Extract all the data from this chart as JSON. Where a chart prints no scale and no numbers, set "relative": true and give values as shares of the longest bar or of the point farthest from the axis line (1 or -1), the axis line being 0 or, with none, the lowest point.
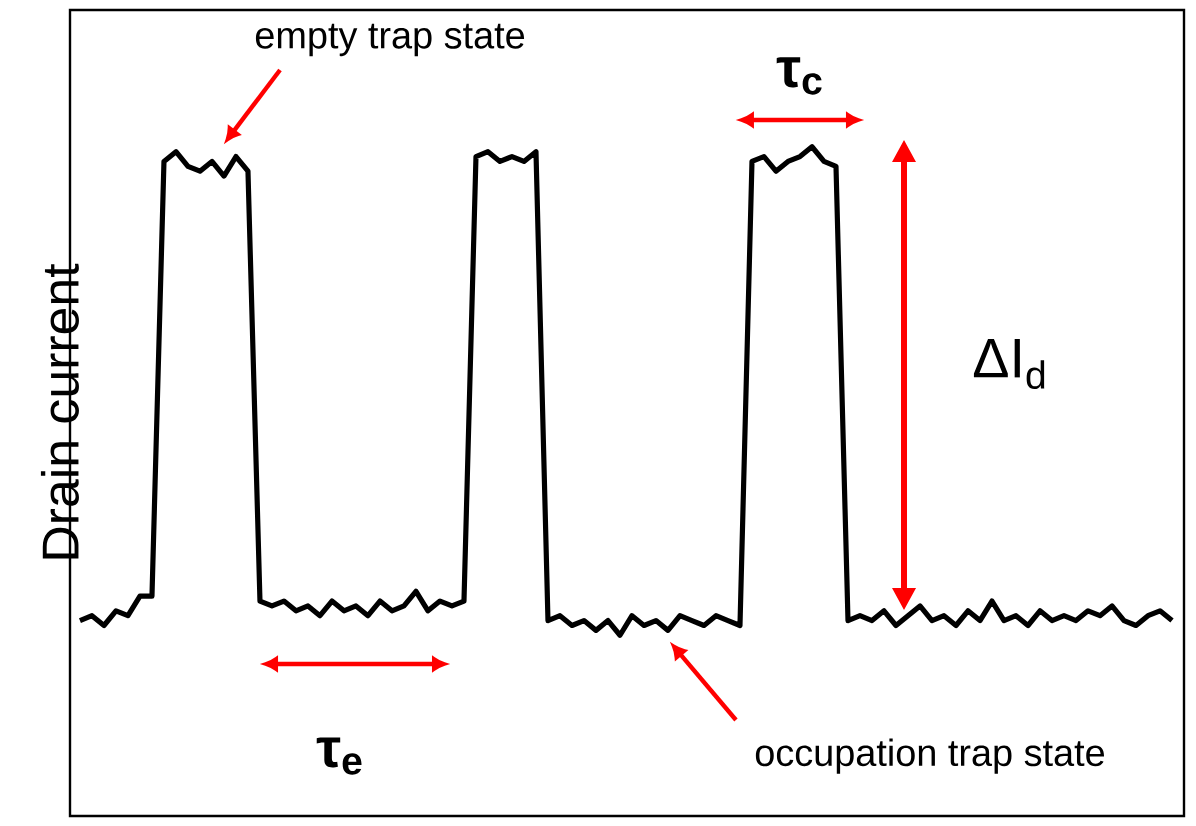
{
  "chart_data": {
    "type": "line",
    "relative": true,
    "ylabel": "Drain current",
    "color": "#000000",
    "marker": "none",
    "line_style": "solid",
    "categories": [
      null,
      null,
      null,
      null,
      null,
      null,
      null,
      null,
      null,
      null,
      null,
      null,
      null,
      null,
      null,
      null,
      null,
      null,
      null,
      null,
      null,
      null,
      null,
      null,
      null,
      null,
      null,
      null,
      null,
      null,
      null,
      null,
      null,
      null,
      null,
      null,
      null,
      null,
      null,
      null,
      null,
      null,
      null,
      null,
      null,
      null,
      null,
      null,
      null,
      null,
      null,
      null,
      null,
      null,
      null,
      null,
      null,
      null,
      null,
      null,
      null,
      null,
      null,
      null,
      null,
      null,
      null,
      null,
      null,
      null,
      null,
      null,
      null,
      null,
      null,
      null,
      null,
      null,
      null,
      null,
      null,
      null,
      null,
      null,
      null,
      null,
      null,
      null,
      null,
      null,
      null,
      null
    ],
    "values": [
      0.03,
      0.04,
      0.02,
      0.05,
      0.04,
      0.08,
      0.08,
      0.97,
      0.99,
      0.96,
      0.95,
      0.97,
      0.94,
      0.98,
      0.95,
      0.07,
      0.06,
      0.07,
      0.05,
      0.06,
      0.04,
      0.07,
      0.05,
      0.06,
      0.04,
      0.07,
      0.05,
      0.06,
      0.09,
      0.05,
      0.07,
      0.06,
      0.07,
      0.98,
      0.99,
      0.97,
      0.98,
      0.97,
      0.99,
      0.03,
      0.04,
      0.02,
      0.03,
      0.01,
      0.03,
      0.0,
      0.04,
      0.02,
      0.03,
      0.01,
      0.04,
      0.03,
      0.02,
      0.04,
      0.03,
      0.02,
      0.97,
      0.98,
      0.95,
      0.97,
      0.98,
      1.0,
      0.97,
      0.96,
      0.03,
      0.04,
      0.03,
      0.05,
      0.02,
      0.04,
      0.06,
      0.03,
      0.04,
      0.02,
      0.05,
      0.03,
      0.07,
      0.03,
      0.04,
      0.02,
      0.05,
      0.03,
      0.04,
      0.03,
      0.05,
      0.04,
      0.06,
      0.03,
      0.02,
      0.04,
      0.05,
      0.03
    ],
    "annotations": [
      "empty trap state",
      "τ$_{c}$",
      "ΔI$_{d}$",
      "τ$_{e}$",
      "occupation trap state"
    ]
  }
}
